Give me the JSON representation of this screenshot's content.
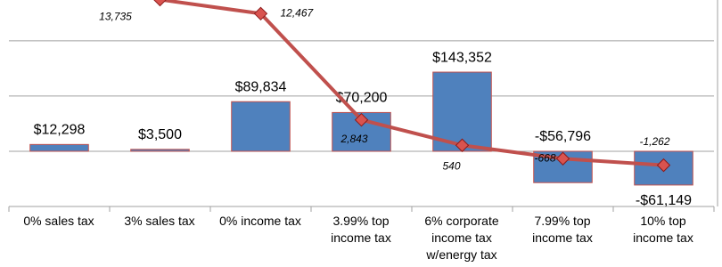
{
  "chart_data": {
    "type": "bar-line",
    "categories": [
      "0% sales tax",
      "3% sales tax",
      "0% income tax",
      "3.99% top\nincome tax",
      "6% corporate\nincome tax\nw/energy tax",
      "7.99% top\nincome tax",
      "10% top\nincome tax"
    ],
    "series": [
      {
        "type": "bar",
        "color": "#4f81bd",
        "values": [
          12298,
          3500,
          89834,
          70200,
          143352,
          -56796,
          -61149
        ],
        "value_labels": [
          "$12,298",
          "$3,500",
          "$89,834",
          "$70,200",
          "$143,352",
          "-$56,796",
          "-$61,149"
        ]
      },
      {
        "type": "line",
        "axis": "y2",
        "color": "#c0504d",
        "values": [
          null,
          13735,
          12467,
          2843,
          540,
          -668,
          -1262
        ],
        "value_labels": [
          null,
          "13,735",
          "12,467",
          "2,843",
          "540",
          "-668",
          "-1,262"
        ]
      }
    ],
    "ylim": [
      -100000,
      274000
    ],
    "yticks": [
      -100000,
      0,
      100000,
      200000
    ],
    "y2lim": [
      -5000,
      13700
    ],
    "grid": true
  }
}
